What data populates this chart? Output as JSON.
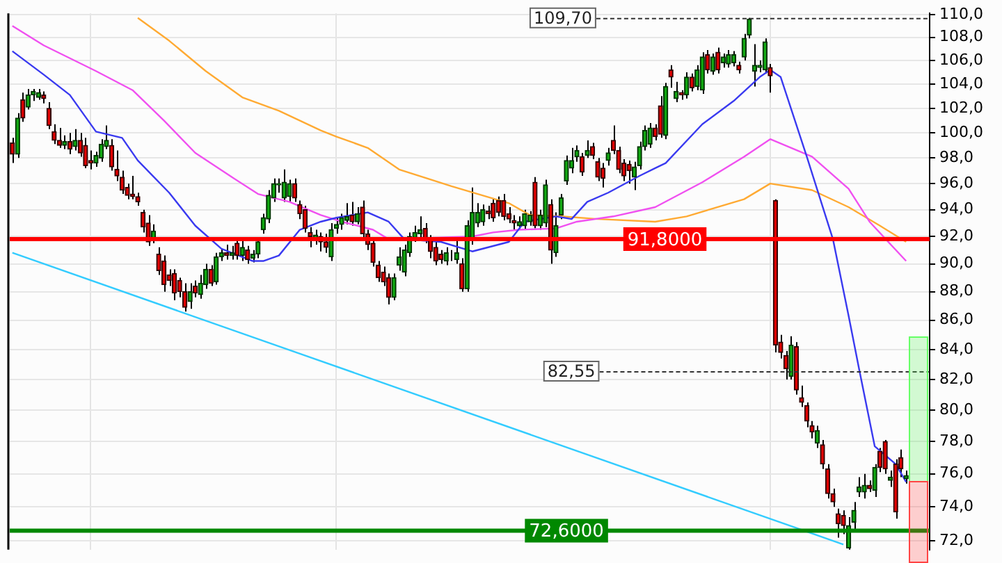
{
  "chart_data": {
    "type": "candlestick",
    "log": true,
    "grid": true,
    "tick_labels": "y",
    "categories": [
      null,
      null,
      null,
      null,
      null,
      null,
      null,
      null,
      null,
      null,
      null,
      null,
      null,
      null,
      null,
      null,
      null,
      null,
      null,
      null,
      null,
      null,
      null,
      null,
      null,
      null,
      null,
      null,
      null,
      null,
      null,
      null,
      null,
      null,
      null,
      null,
      null,
      null,
      null,
      null,
      null,
      null,
      null,
      null,
      null,
      null,
      null,
      null,
      null,
      null,
      null,
      null,
      null,
      null,
      null,
      null,
      null,
      null,
      null,
      null,
      null,
      null,
      null,
      null,
      null,
      null,
      null,
      null,
      null,
      null,
      null,
      null,
      null,
      null,
      null,
      null,
      null,
      null,
      null,
      null,
      null,
      null,
      null,
      null,
      null,
      null,
      null,
      null,
      null,
      null,
      null,
      null,
      null,
      null,
      null,
      null,
      null,
      null,
      null,
      null,
      null,
      null,
      null,
      null,
      null,
      null,
      null,
      null,
      null,
      null,
      null,
      null,
      null,
      null,
      null,
      null,
      null,
      null,
      null,
      null,
      null,
      null,
      null,
      null,
      null,
      null,
      null,
      null,
      null,
      null,
      null,
      null,
      null,
      null,
      null,
      null,
      null,
      null,
      null,
      null,
      null,
      null,
      null,
      null,
      null,
      null,
      null,
      null,
      null,
      null,
      null,
      null,
      null,
      null,
      null,
      null,
      null,
      null,
      null,
      null,
      null,
      null,
      null,
      null,
      null,
      null,
      null,
      null,
      null,
      null,
      null,
      null,
      null,
      null,
      null,
      null
    ],
    "ohlc": [
      [
        99.2,
        99.6,
        97.6,
        98.3
      ],
      [
        98.3,
        101.6,
        98.0,
        101.2
      ],
      [
        102.7,
        103.3,
        100.9,
        101.2
      ],
      [
        102.1,
        103.6,
        101.9,
        103.1
      ],
      [
        103.1,
        103.6,
        102.6,
        103.4
      ],
      [
        102.9,
        103.6,
        102.7,
        103.3
      ],
      [
        103.1,
        103.4,
        102.4,
        102.8
      ],
      [
        102.0,
        102.5,
        100.3,
        100.6
      ],
      [
        100.1,
        100.7,
        99.1,
        99.4
      ],
      [
        99.4,
        100.4,
        98.8,
        99.0
      ],
      [
        99.0,
        99.8,
        98.7,
        99.3
      ],
      [
        99.3,
        100.0,
        98.3,
        98.7
      ],
      [
        98.9,
        100.3,
        98.6,
        99.4
      ],
      [
        99.4,
        100.0,
        98.1,
        98.4
      ],
      [
        99.0,
        99.6,
        97.2,
        97.4
      ],
      [
        97.8,
        98.6,
        97.1,
        97.6
      ],
      [
        97.6,
        98.5,
        97.3,
        98.2
      ],
      [
        98.0,
        99.5,
        97.7,
        99.1
      ],
      [
        98.9,
        100.6,
        98.7,
        99.4
      ],
      [
        99.0,
        99.5,
        97.0,
        97.3
      ],
      [
        97.1,
        98.6,
        96.2,
        96.6
      ],
      [
        96.5,
        97.0,
        95.2,
        95.5
      ],
      [
        95.7,
        96.0,
        94.8,
        95.1
      ],
      [
        95.2,
        96.6,
        94.8,
        95.0
      ],
      [
        95.0,
        95.3,
        94.3,
        94.6
      ],
      [
        93.8,
        94.0,
        92.3,
        92.7
      ],
      [
        93.0,
        93.6,
        91.3,
        91.6
      ],
      [
        91.8,
        92.9,
        91.5,
        92.4
      ],
      [
        90.7,
        91.2,
        89.2,
        89.5
      ],
      [
        90.2,
        90.6,
        88.0,
        88.5
      ],
      [
        89.2,
        89.6,
        88.4,
        88.8
      ],
      [
        89.3,
        89.6,
        87.4,
        87.9
      ],
      [
        88.8,
        89.0,
        87.6,
        88.0
      ],
      [
        88.0,
        88.6,
        86.6,
        86.9
      ],
      [
        87.3,
        88.6,
        86.8,
        88.0
      ],
      [
        88.4,
        88.8,
        87.6,
        87.9
      ],
      [
        87.8,
        89.2,
        87.5,
        88.6
      ],
      [
        88.5,
        90.0,
        88.2,
        89.6
      ],
      [
        89.6,
        89.9,
        88.4,
        88.6
      ],
      [
        88.7,
        90.8,
        88.5,
        90.5
      ],
      [
        90.5,
        91.1,
        90.2,
        90.8
      ],
      [
        90.8,
        91.4,
        90.3,
        90.6
      ],
      [
        90.6,
        91.3,
        90.3,
        90.8
      ],
      [
        91.5,
        91.8,
        90.3,
        90.6
      ],
      [
        90.6,
        91.8,
        90.2,
        91.2
      ],
      [
        91.0,
        91.3,
        90.0,
        90.3
      ],
      [
        90.4,
        91.0,
        90.1,
        90.7
      ],
      [
        90.7,
        91.9,
        90.4,
        91.6
      ],
      [
        92.5,
        93.7,
        92.2,
        93.4
      ],
      [
        93.3,
        95.5,
        93.0,
        95.1
      ],
      [
        94.9,
        96.4,
        94.6,
        96.0
      ],
      [
        95.9,
        96.4,
        95.3,
        96.0
      ],
      [
        94.9,
        97.1,
        94.6,
        96.1
      ],
      [
        95.0,
        96.3,
        94.6,
        96.0
      ],
      [
        96.0,
        96.4,
        94.6,
        94.9
      ],
      [
        94.4,
        94.7,
        93.3,
        93.7
      ],
      [
        94.0,
        94.3,
        92.3,
        92.6
      ],
      [
        92.3,
        92.7,
        91.2,
        92.0
      ],
      [
        91.8,
        92.5,
        91.4,
        92.1
      ],
      [
        92.0,
        92.3,
        90.9,
        91.6
      ],
      [
        91.6,
        92.2,
        90.8,
        91.2
      ],
      [
        90.5,
        93.0,
        90.2,
        92.5
      ],
      [
        92.6,
        93.4,
        92.2,
        92.9
      ],
      [
        92.9,
        93.7,
        92.5,
        93.4
      ],
      [
        93.2,
        94.5,
        92.9,
        93.5
      ],
      [
        93.6,
        94.6,
        92.8,
        93.1
      ],
      [
        93.1,
        94.2,
        92.9,
        93.7
      ],
      [
        94.2,
        94.7,
        91.8,
        92.2
      ],
      [
        92.2,
        92.5,
        91.0,
        91.4
      ],
      [
        91.5,
        91.8,
        89.8,
        90.1
      ],
      [
        89.9,
        90.2,
        88.7,
        89.0
      ],
      [
        89.4,
        89.8,
        88.4,
        88.7
      ],
      [
        89.0,
        89.3,
        87.1,
        87.6
      ],
      [
        87.6,
        89.3,
        87.4,
        89.0
      ],
      [
        89.9,
        91.2,
        89.5,
        90.5
      ],
      [
        89.4,
        91.4,
        89.1,
        91.0
      ],
      [
        90.8,
        92.3,
        90.5,
        92.0
      ],
      [
        91.9,
        92.8,
        91.6,
        92.3
      ],
      [
        92.2,
        93.5,
        91.9,
        92.5
      ],
      [
        92.6,
        93.0,
        91.5,
        91.8
      ],
      [
        91.8,
        92.1,
        90.4,
        90.9
      ],
      [
        91.2,
        91.6,
        89.9,
        90.2
      ],
      [
        90.7,
        91.0,
        90.0,
        90.3
      ],
      [
        90.2,
        91.2,
        89.9,
        90.8
      ],
      [
        90.6,
        91.0,
        90.2,
        90.6
      ],
      [
        90.3,
        91.9,
        90.0,
        90.8
      ],
      [
        90.0,
        90.4,
        88.0,
        88.2
      ],
      [
        88.2,
        93.2,
        88.0,
        92.8
      ],
      [
        91.8,
        95.7,
        91.4,
        93.8
      ],
      [
        93.0,
        94.5,
        92.7,
        93.8
      ],
      [
        93.1,
        94.4,
        92.8,
        94.0
      ],
      [
        93.9,
        94.3,
        93.3,
        93.7
      ],
      [
        94.5,
        94.8,
        93.1,
        93.4
      ],
      [
        94.7,
        95.0,
        93.5,
        93.8
      ],
      [
        94.7,
        95.2,
        93.2,
        93.5
      ],
      [
        93.7,
        94.2,
        93.0,
        93.3
      ],
      [
        93.2,
        93.6,
        92.5,
        93.0
      ],
      [
        92.8,
        93.5,
        92.5,
        93.1
      ],
      [
        92.8,
        94.0,
        92.5,
        93.7
      ],
      [
        93.1,
        93.9,
        92.8,
        93.6
      ],
      [
        96.1,
        96.5,
        92.6,
        92.8
      ],
      [
        92.8,
        94.0,
        92.5,
        93.6
      ],
      [
        93.0,
        96.3,
        92.7,
        95.9
      ],
      [
        94.4,
        94.8,
        90.0,
        91.0
      ],
      [
        90.8,
        93.8,
        90.5,
        92.8
      ],
      [
        93.6,
        95.2,
        93.3,
        94.9
      ],
      [
        96.2,
        98.2,
        95.9,
        97.8
      ],
      [
        97.2,
        98.8,
        96.8,
        97.8
      ],
      [
        98.1,
        99.0,
        97.7,
        98.6
      ],
      [
        98.1,
        98.4,
        96.6,
        96.9
      ],
      [
        98.2,
        99.4,
        98.0,
        98.6
      ],
      [
        98.9,
        99.2,
        97.9,
        98.2
      ],
      [
        97.7,
        98.0,
        96.2,
        96.5
      ],
      [
        97.2,
        97.6,
        95.7,
        96.4
      ],
      [
        97.8,
        98.8,
        97.4,
        98.4
      ],
      [
        99.4,
        100.6,
        98.3,
        98.6
      ],
      [
        98.6,
        98.9,
        96.8,
        97.1
      ],
      [
        97.6,
        97.9,
        96.2,
        96.6
      ],
      [
        97.5,
        97.8,
        96.0,
        97.0
      ],
      [
        96.5,
        97.7,
        95.5,
        97.3
      ],
      [
        97.4,
        99.3,
        97.1,
        98.9
      ],
      [
        98.9,
        100.6,
        98.6,
        100.2
      ],
      [
        99.1,
        100.8,
        98.8,
        100.4
      ],
      [
        100.4,
        100.7,
        99.4,
        99.7
      ],
      [
        102.2,
        103.0,
        99.6,
        99.9
      ],
      [
        99.8,
        104.1,
        99.5,
        103.8
      ],
      [
        105.2,
        105.6,
        103.7,
        104.6
      ],
      [
        102.8,
        104.2,
        102.5,
        103.4
      ],
      [
        103.3,
        103.5,
        102.7,
        103.1
      ],
      [
        103.1,
        105.0,
        102.8,
        104.6
      ],
      [
        104.6,
        104.9,
        103.4,
        103.7
      ],
      [
        103.8,
        105.6,
        103.5,
        105.2
      ],
      [
        103.5,
        106.7,
        103.2,
        106.3
      ],
      [
        106.5,
        106.9,
        104.9,
        105.2
      ],
      [
        105.1,
        106.6,
        104.8,
        106.3
      ],
      [
        106.7,
        107.1,
        104.9,
        105.2
      ],
      [
        105.8,
        106.6,
        105.4,
        106.3
      ],
      [
        105.7,
        106.9,
        105.4,
        106.5
      ],
      [
        105.8,
        106.8,
        105.5,
        106.5
      ],
      [
        105.6,
        105.9,
        104.9,
        105.2
      ],
      [
        106.3,
        108.3,
        106.0,
        107.9
      ],
      [
        108.2,
        109.7,
        107.9,
        109.6
      ],
      [
        105.1,
        107.4,
        103.8,
        105.6
      ],
      [
        105.4,
        106.0,
        105.0,
        105.6
      ],
      [
        105.2,
        107.9,
        104.9,
        107.6
      ],
      [
        105.4,
        105.7,
        103.3,
        104.7
      ],
      [
        94.7,
        94.8,
        83.8,
        84.3
      ],
      [
        84.5,
        85.0,
        83.4,
        83.8
      ],
      [
        83.6,
        83.9,
        82.0,
        82.7
      ],
      [
        82.2,
        84.9,
        82.0,
        84.3
      ],
      [
        84.2,
        84.5,
        81.0,
        81.3
      ],
      [
        80.8,
        81.6,
        80.2,
        80.5
      ],
      [
        80.3,
        80.5,
        78.9,
        79.3
      ],
      [
        79.0,
        79.3,
        78.2,
        78.6
      ],
      [
        77.9,
        79.0,
        77.6,
        78.7
      ],
      [
        77.8,
        78.1,
        76.3,
        76.6
      ],
      [
        76.3,
        76.6,
        74.5,
        74.8
      ],
      [
        74.8,
        75.1,
        74.0,
        74.3
      ],
      [
        73.6,
        73.9,
        72.2,
        73.0
      ],
      [
        73.5,
        73.8,
        72.4,
        72.9
      ],
      [
        71.6,
        73.4,
        71.5,
        72.9
      ],
      [
        73.1,
        74.3,
        72.7,
        73.8
      ],
      [
        74.9,
        75.8,
        74.6,
        75.2
      ],
      [
        74.9,
        76.0,
        74.5,
        75.3
      ],
      [
        75.3,
        75.6,
        74.9,
        75.1
      ],
      [
        75.0,
        76.6,
        74.6,
        76.4
      ],
      [
        77.4,
        77.6,
        76.1,
        76.4
      ],
      [
        78.0,
        78.1,
        76.0,
        76.3
      ],
      [
        75.6,
        76.2,
        75.2,
        75.8
      ],
      [
        76.6,
        76.9,
        73.3,
        73.7
      ],
      [
        77.0,
        77.5,
        75.8,
        76.3
      ],
      [
        75.7,
        76.2,
        75.4,
        75.9
      ],
      null,
      null,
      null,
      null
    ],
    "series": [
      {
        "type": "line",
        "color": "#3a3af0",
        "values": [
          106.8,
          null,
          null,
          null,
          null,
          null,
          104.8,
          null,
          null,
          null,
          null,
          103.1,
          null,
          null,
          null,
          null,
          100.1,
          null,
          null,
          null,
          null,
          99.6,
          null,
          null,
          97.8,
          null,
          null,
          null,
          null,
          null,
          95.3,
          null,
          null,
          null,
          null,
          92.8,
          null,
          null,
          null,
          null,
          91.1,
          null,
          null,
          null,
          null,
          null,
          90.2,
          null,
          90.2,
          null,
          null,
          90.6,
          null,
          null,
          null,
          92.5,
          null,
          null,
          null,
          93.1,
          null,
          null,
          93.4,
          null,
          null,
          null,
          null,
          null,
          93.8,
          null,
          null,
          null,
          93.1,
          null,
          null,
          91.8,
          null,
          null,
          null,
          null,
          null,
          null,
          91.6,
          null,
          null,
          null,
          null,
          null,
          90.9,
          null,
          null,
          null,
          null,
          null,
          null,
          91.6,
          null,
          null,
          93.1,
          null,
          null,
          null,
          null,
          null,
          93.5,
          null,
          null,
          93.3,
          null,
          null,
          94.6,
          null,
          null,
          null,
          95.3,
          null,
          null,
          null,
          null,
          null,
          96.6,
          null,
          null,
          97.2,
          null,
          97.6,
          null,
          null,
          null,
          null,
          null,
          null,
          100.7,
          null,
          null,
          null,
          null,
          null,
          102.6,
          null,
          null,
          null,
          null,
          104.6,
          null,
          105.2,
          null,
          104.6,
          null,
          null,
          null,
          null,
          98.1,
          null,
          null,
          null,
          null,
          91.8,
          null,
          null,
          86.3,
          null,
          82.7,
          null,
          null,
          77.7,
          null,
          null,
          null,
          76.6,
          null,
          75.5,
          null,
          null,
          null,
          null
        ]
      },
      {
        "type": "line",
        "color": "#f050f0",
        "values": [
          109.0,
          null,
          null,
          null,
          null,
          null,
          107.3,
          null,
          null,
          null,
          null,
          null,
          null,
          null,
          null,
          null,
          105.1,
          null,
          null,
          null,
          null,
          null,
          null,
          103.5,
          null,
          null,
          null,
          null,
          null,
          101.0,
          null,
          null,
          null,
          null,
          null,
          98.4,
          null,
          null,
          null,
          null,
          null,
          null,
          96.5,
          null,
          null,
          null,
          null,
          95.2,
          null,
          null,
          null,
          null,
          null,
          94.6,
          null,
          null,
          null,
          null,
          null,
          93.6,
          null,
          null,
          null,
          93.1,
          null,
          null,
          null,
          null,
          null,
          92.5,
          null,
          null,
          91.8,
          null,
          null,
          null,
          null,
          null,
          null,
          null,
          null,
          null,
          null,
          null,
          null,
          null,
          null,
          null,
          92.0,
          null,
          null,
          null,
          92.3,
          null,
          null,
          null,
          null,
          92.5,
          null,
          null,
          null,
          null,
          null,
          null,
          92.6,
          null,
          null,
          null,
          93.1,
          null,
          null,
          null,
          null,
          null,
          null,
          93.5,
          null,
          null,
          null,
          null,
          null,
          null,
          null,
          94.2,
          null,
          null,
          null,
          null,
          null,
          null,
          null,
          null,
          96.1,
          null,
          null,
          null,
          null,
          null,
          null,
          null,
          98.1,
          null,
          null,
          null,
          null,
          99.5,
          null,
          null,
          null,
          null,
          null,
          null,
          null,
          98.1,
          null,
          null,
          null,
          null,
          null,
          null,
          95.6,
          null,
          null,
          null,
          93.1,
          null,
          null,
          null,
          null,
          null,
          null,
          90.2,
          null,
          null,
          null,
          null
        ]
      },
      {
        "type": "line",
        "color": "#ffaa33",
        "values": [
          null,
          null,
          null,
          null,
          null,
          null,
          null,
          null,
          null,
          null,
          null,
          null,
          null,
          null,
          null,
          null,
          null,
          null,
          null,
          null,
          null,
          null,
          null,
          null,
          109.7,
          null,
          null,
          null,
          null,
          null,
          107.7,
          null,
          null,
          null,
          null,
          null,
          null,
          105.1,
          null,
          null,
          null,
          null,
          null,
          null,
          102.9,
          null,
          null,
          null,
          null,
          null,
          null,
          101.8,
          null,
          null,
          null,
          null,
          null,
          null,
          null,
          100.2,
          null,
          null,
          99.7,
          null,
          null,
          null,
          null,
          null,
          98.8,
          null,
          null,
          null,
          null,
          null,
          97.1,
          null,
          null,
          null,
          null,
          null,
          null,
          null,
          null,
          null,
          95.8,
          null,
          null,
          null,
          null,
          null,
          null,
          null,
          null,
          null,
          null,
          94.5,
          null,
          null,
          null,
          93.6,
          null,
          null,
          null,
          null,
          null,
          93.5,
          null,
          null,
          null,
          null,
          null,
          null,
          93.3,
          null,
          null,
          null,
          null,
          null,
          null,
          null,
          null,
          null,
          null,
          93.1,
          null,
          null,
          null,
          null,
          null,
          93.5,
          null,
          null,
          null,
          null,
          null,
          null,
          null,
          null,
          null,
          null,
          94.8,
          null,
          null,
          null,
          null,
          96.0,
          null,
          null,
          null,
          null,
          null,
          null,
          null,
          95.5,
          null,
          null,
          null,
          null,
          null,
          null,
          94.2,
          null,
          null,
          null,
          null,
          null,
          92.8,
          null,
          null,
          null,
          null,
          91.6,
          null,
          null,
          null,
          null
        ]
      },
      {
        "type": "line",
        "color": "#33ccff",
        "values": [
          90.8,
          null,
          null,
          null,
          null,
          null,
          null,
          null,
          null,
          null,
          null,
          null,
          null,
          null,
          null,
          null,
          null,
          null,
          null,
          null,
          null,
          null,
          null,
          null,
          null,
          null,
          null,
          null,
          null,
          null,
          null,
          null,
          null,
          null,
          null,
          null,
          null,
          null,
          null,
          null,
          null,
          null,
          null,
          null,
          null,
          null,
          null,
          null,
          null,
          null,
          null,
          null,
          null,
          null,
          null,
          null,
          null,
          null,
          null,
          null,
          null,
          null,
          null,
          null,
          null,
          null,
          null,
          null,
          null,
          null,
          null,
          null,
          null,
          null,
          null,
          null,
          null,
          null,
          null,
          null,
          null,
          null,
          null,
          null,
          null,
          null,
          null,
          null,
          null,
          null,
          null,
          null,
          null,
          null,
          null,
          null,
          null,
          null,
          null,
          null,
          null,
          null,
          null,
          null,
          null,
          null,
          null,
          null,
          null,
          null,
          null,
          null,
          null,
          null,
          null,
          null,
          null,
          null,
          null,
          null,
          null,
          null,
          null,
          null,
          null,
          null,
          null,
          null,
          null,
          null,
          null,
          null,
          null,
          null,
          null,
          null,
          null,
          null,
          null,
          null,
          null,
          null,
          null,
          null,
          null,
          null,
          null,
          null,
          null,
          null,
          null,
          null,
          null,
          null,
          null,
          null,
          null,
          null,
          null,
          71.8,
          null,
          null,
          null,
          null,
          null,
          null,
          null,
          null,
          null,
          null,
          null,
          null,
          null,
          null,
          null,
          null
        ]
      }
    ],
    "ylim": [
      71.5,
      110.1
    ],
    "yticks": [
      {
        "value": 72,
        "label": "72,0"
      },
      {
        "value": 74,
        "label": "74,0"
      },
      {
        "value": 76,
        "label": "76,0"
      },
      {
        "value": 78,
        "label": "78,0"
      },
      {
        "value": 80,
        "label": "80,0"
      },
      {
        "value": 82,
        "label": "82,0"
      },
      {
        "value": 84,
        "label": "84,0"
      },
      {
        "value": 86,
        "label": "86,0"
      },
      {
        "value": 88,
        "label": "88,0"
      },
      {
        "value": 90,
        "label": "90,0"
      },
      {
        "value": 92,
        "label": "92,0"
      },
      {
        "value": 94,
        "label": "94,0"
      },
      {
        "value": 96,
        "label": "96,0"
      },
      {
        "value": 98,
        "label": "98,0"
      },
      {
        "value": 100,
        "label": "100,0"
      },
      {
        "value": 102,
        "label": "102,0"
      },
      {
        "value": 104,
        "label": "104,0"
      },
      {
        "value": 106,
        "label": "106,0"
      },
      {
        "value": 108,
        "label": "108,0"
      },
      {
        "value": 110,
        "label": "110,0"
      }
    ],
    "ref_lines": [
      {
        "axis": "y",
        "value": 91.8,
        "label": "91,8000",
        "color": "#ff0000",
        "line_style": "solid"
      },
      {
        "axis": "y",
        "value": 72.6,
        "label": "72,6000",
        "color": "#008800",
        "line_style": "solid"
      },
      {
        "axis": "y",
        "value": 109.7,
        "label": "109,70",
        "color": "#333333",
        "line_style": "dashed"
      },
      {
        "axis": "y",
        "value": 82.55,
        "label": "82,55",
        "color": "#333333",
        "line_style": "dashed"
      }
    ]
  }
}
